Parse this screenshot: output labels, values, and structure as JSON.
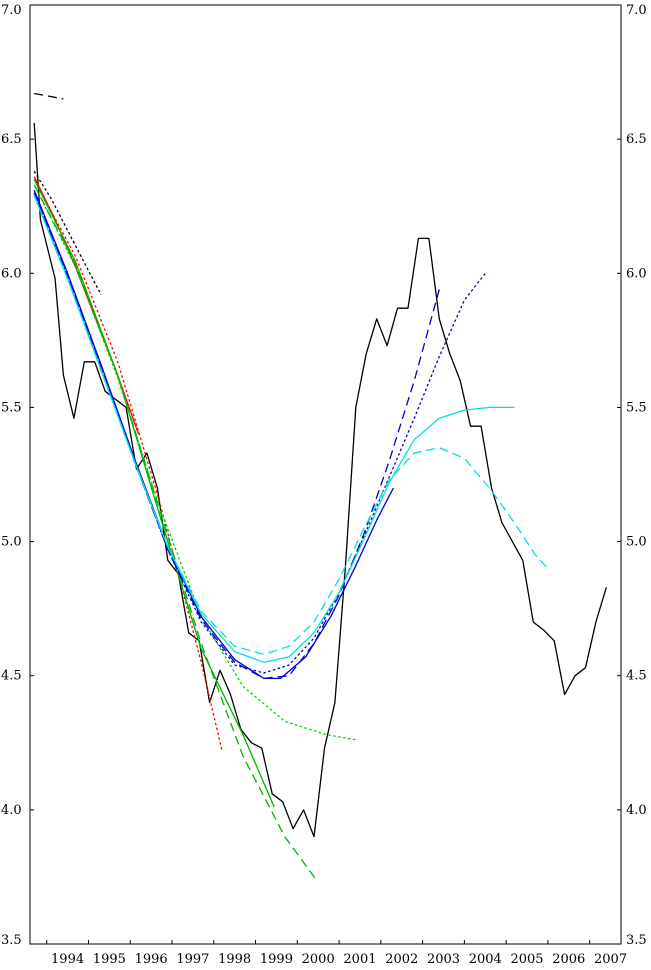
{
  "chart_data": {
    "type": "line",
    "title": "",
    "xlabel": "",
    "ylabel": "",
    "xlim": [
      1993.6,
      2007.75
    ],
    "ylim": [
      3.5,
      7.0
    ],
    "y_ticks": [
      "3.5",
      "4.0",
      "4.5",
      "5.0",
      "5.5",
      "6.0",
      "6.5",
      "7.0"
    ],
    "x_ticks": [
      "1994",
      "1995",
      "1996",
      "1997",
      "1998",
      "1999",
      "2000",
      "2001",
      "2002",
      "2003",
      "2004",
      "2005",
      "2006",
      "2007"
    ],
    "grid": false,
    "legend": "none",
    "series": [
      {
        "color": "#000000",
        "dash": "solid",
        "points": [
          [
            1993.7,
            6.56
          ],
          [
            1993.85,
            6.2
          ],
          [
            1994.2,
            5.98
          ],
          [
            1994.4,
            5.62
          ],
          [
            1994.65,
            5.46
          ],
          [
            1994.9,
            5.67
          ],
          [
            1995.15,
            5.67
          ],
          [
            1995.4,
            5.56
          ],
          [
            1995.65,
            5.53
          ],
          [
            1995.9,
            5.5
          ],
          [
            1996.15,
            5.27
          ],
          [
            1996.4,
            5.33
          ],
          [
            1996.65,
            5.2
          ],
          [
            1996.9,
            4.93
          ],
          [
            1997.15,
            4.88
          ],
          [
            1997.4,
            4.66
          ],
          [
            1997.65,
            4.63
          ],
          [
            1997.9,
            4.4
          ],
          [
            1998.15,
            4.52
          ],
          [
            1998.4,
            4.43
          ],
          [
            1998.65,
            4.3
          ],
          [
            1998.9,
            4.25
          ],
          [
            1999.15,
            4.23
          ],
          [
            1999.4,
            4.06
          ],
          [
            1999.65,
            4.03
          ],
          [
            1999.9,
            3.93
          ],
          [
            2000.15,
            4.0
          ],
          [
            2000.4,
            3.9
          ],
          [
            2000.65,
            4.23
          ],
          [
            2000.9,
            4.4
          ],
          [
            2001.15,
            4.9
          ],
          [
            2001.4,
            5.5
          ],
          [
            2001.65,
            5.7
          ],
          [
            2001.9,
            5.83
          ],
          [
            2002.15,
            5.73
          ],
          [
            2002.4,
            5.87
          ],
          [
            2002.65,
            5.87
          ],
          [
            2002.9,
            6.13
          ],
          [
            2003.15,
            6.13
          ],
          [
            2003.4,
            5.83
          ],
          [
            2003.65,
            5.7
          ],
          [
            2003.9,
            5.6
          ],
          [
            2004.15,
            5.43
          ],
          [
            2004.4,
            5.43
          ],
          [
            2004.65,
            5.2
          ],
          [
            2004.9,
            5.07
          ],
          [
            2005.15,
            5.0
          ],
          [
            2005.4,
            4.93
          ],
          [
            2005.65,
            4.7
          ],
          [
            2005.9,
            4.67
          ],
          [
            2006.15,
            4.63
          ],
          [
            2006.4,
            4.43
          ],
          [
            2006.65,
            4.5
          ],
          [
            2006.9,
            4.53
          ],
          [
            2007.15,
            4.7
          ],
          [
            2007.4,
            4.83
          ]
        ]
      },
      {
        "color": "#000000",
        "dash": "dash",
        "points": [
          [
            1993.7,
            6.67
          ],
          [
            1994.4,
            6.65
          ]
        ]
      },
      {
        "color": "#000000",
        "dash": "dot",
        "points": [
          [
            1993.7,
            6.38
          ],
          [
            1994.1,
            6.28
          ],
          [
            1994.5,
            6.16
          ],
          [
            1994.9,
            6.04
          ],
          [
            1995.3,
            5.92
          ]
        ]
      },
      {
        "color": "#ff0000",
        "dash": "solid",
        "points": [
          [
            1993.7,
            6.36
          ],
          [
            1994.2,
            6.2
          ],
          [
            1994.7,
            6.02
          ],
          [
            1995.2,
            5.82
          ],
          [
            1995.7,
            5.62
          ],
          [
            1996.2,
            5.4
          ]
        ]
      },
      {
        "color": "#ff0000",
        "dash": "dot",
        "points": [
          [
            1993.7,
            6.35
          ],
          [
            1994.7,
            6.06
          ],
          [
            1995.7,
            5.67
          ],
          [
            1996.7,
            5.15
          ],
          [
            1997.7,
            4.55
          ],
          [
            1998.2,
            4.22
          ]
        ]
      },
      {
        "color": "#00b000",
        "dash": "solid",
        "points": [
          [
            1993.7,
            6.35
          ],
          [
            1994.7,
            6.04
          ],
          [
            1995.7,
            5.62
          ],
          [
            1996.7,
            5.1
          ],
          [
            1997.7,
            4.6
          ],
          [
            1998.7,
            4.28
          ],
          [
            1999.45,
            4.01
          ]
        ]
      },
      {
        "color": "#00b000",
        "dash": "dash",
        "points": [
          [
            1993.7,
            6.33
          ],
          [
            1994.7,
            6.03
          ],
          [
            1995.7,
            5.62
          ],
          [
            1996.7,
            5.12
          ],
          [
            1997.7,
            4.62
          ],
          [
            1998.7,
            4.2
          ],
          [
            1999.7,
            3.9
          ],
          [
            2000.45,
            3.74
          ]
        ]
      },
      {
        "color": "#00d000",
        "dash": "dot",
        "points": [
          [
            1993.7,
            6.33
          ],
          [
            1994.7,
            6.02
          ],
          [
            1995.7,
            5.61
          ],
          [
            1996.7,
            5.13
          ],
          [
            1997.7,
            4.72
          ],
          [
            1998.7,
            4.46
          ],
          [
            1999.7,
            4.33
          ],
          [
            2000.7,
            4.28
          ],
          [
            2001.45,
            4.26
          ]
        ]
      },
      {
        "color": "#0000d0",
        "dash": "solid",
        "points": [
          [
            1993.7,
            6.31
          ],
          [
            1994.5,
            6.0
          ],
          [
            1995.3,
            5.66
          ],
          [
            1996.1,
            5.31
          ],
          [
            1996.9,
            4.98
          ],
          [
            1997.7,
            4.72
          ],
          [
            1998.5,
            4.56
          ],
          [
            1999.2,
            4.49
          ],
          [
            1999.6,
            4.49
          ],
          [
            2000.2,
            4.57
          ],
          [
            2000.8,
            4.72
          ],
          [
            2001.4,
            4.91
          ],
          [
            2001.9,
            5.08
          ],
          [
            2002.3,
            5.2
          ]
        ]
      },
      {
        "color": "#0000d0",
        "dash": "dash",
        "points": [
          [
            1993.7,
            6.3
          ],
          [
            1994.5,
            5.99
          ],
          [
            1995.3,
            5.65
          ],
          [
            1996.1,
            5.3
          ],
          [
            1996.9,
            4.97
          ],
          [
            1997.7,
            4.71
          ],
          [
            1998.5,
            4.55
          ],
          [
            1999.2,
            4.49
          ],
          [
            1999.8,
            4.5
          ],
          [
            2000.4,
            4.62
          ],
          [
            2001.0,
            4.8
          ],
          [
            2001.6,
            5.03
          ],
          [
            2002.2,
            5.3
          ],
          [
            2002.8,
            5.6
          ],
          [
            2003.4,
            5.94
          ]
        ]
      },
      {
        "color": "#0000d0",
        "dash": "dot",
        "points": [
          [
            1993.7,
            6.3
          ],
          [
            1994.5,
            5.99
          ],
          [
            1995.3,
            5.65
          ],
          [
            1996.1,
            5.3
          ],
          [
            1996.9,
            4.97
          ],
          [
            1997.7,
            4.7
          ],
          [
            1998.5,
            4.54
          ],
          [
            1999.2,
            4.51
          ],
          [
            1999.8,
            4.54
          ],
          [
            2000.4,
            4.64
          ],
          [
            2001.0,
            4.81
          ],
          [
            2001.6,
            5.02
          ],
          [
            2002.2,
            5.24
          ],
          [
            2002.8,
            5.46
          ],
          [
            2003.4,
            5.69
          ],
          [
            2004.0,
            5.9
          ],
          [
            2004.5,
            6.0
          ]
        ]
      },
      {
        "color": "#00e0e0",
        "dash": "solid",
        "points": [
          [
            1993.7,
            6.29
          ],
          [
            1994.5,
            5.98
          ],
          [
            1995.3,
            5.64
          ],
          [
            1996.1,
            5.3
          ],
          [
            1996.9,
            4.98
          ],
          [
            1997.7,
            4.73
          ],
          [
            1998.5,
            4.59
          ],
          [
            1999.2,
            4.55
          ],
          [
            1999.8,
            4.57
          ],
          [
            2000.4,
            4.66
          ],
          [
            2001.0,
            4.81
          ],
          [
            2001.6,
            5.01
          ],
          [
            2002.2,
            5.22
          ],
          [
            2002.8,
            5.38
          ],
          [
            2003.4,
            5.46
          ],
          [
            2004.0,
            5.49
          ],
          [
            2004.6,
            5.5
          ],
          [
            2005.2,
            5.5
          ]
        ]
      },
      {
        "color": "#00e0e0",
        "dash": "dash",
        "points": [
          [
            1993.7,
            6.29
          ],
          [
            1994.5,
            5.98
          ],
          [
            1995.3,
            5.64
          ],
          [
            1996.1,
            5.3
          ],
          [
            1996.9,
            4.98
          ],
          [
            1997.7,
            4.74
          ],
          [
            1998.5,
            4.61
          ],
          [
            1999.2,
            4.58
          ],
          [
            1999.8,
            4.61
          ],
          [
            2000.4,
            4.7
          ],
          [
            2001.0,
            4.86
          ],
          [
            2001.6,
            5.05
          ],
          [
            2002.2,
            5.23
          ],
          [
            2002.8,
            5.33
          ],
          [
            2003.4,
            5.35
          ],
          [
            2004.0,
            5.31
          ],
          [
            2004.6,
            5.2
          ],
          [
            2005.2,
            5.07
          ],
          [
            2005.7,
            4.95
          ],
          [
            2006.0,
            4.9
          ]
        ]
      }
    ]
  }
}
